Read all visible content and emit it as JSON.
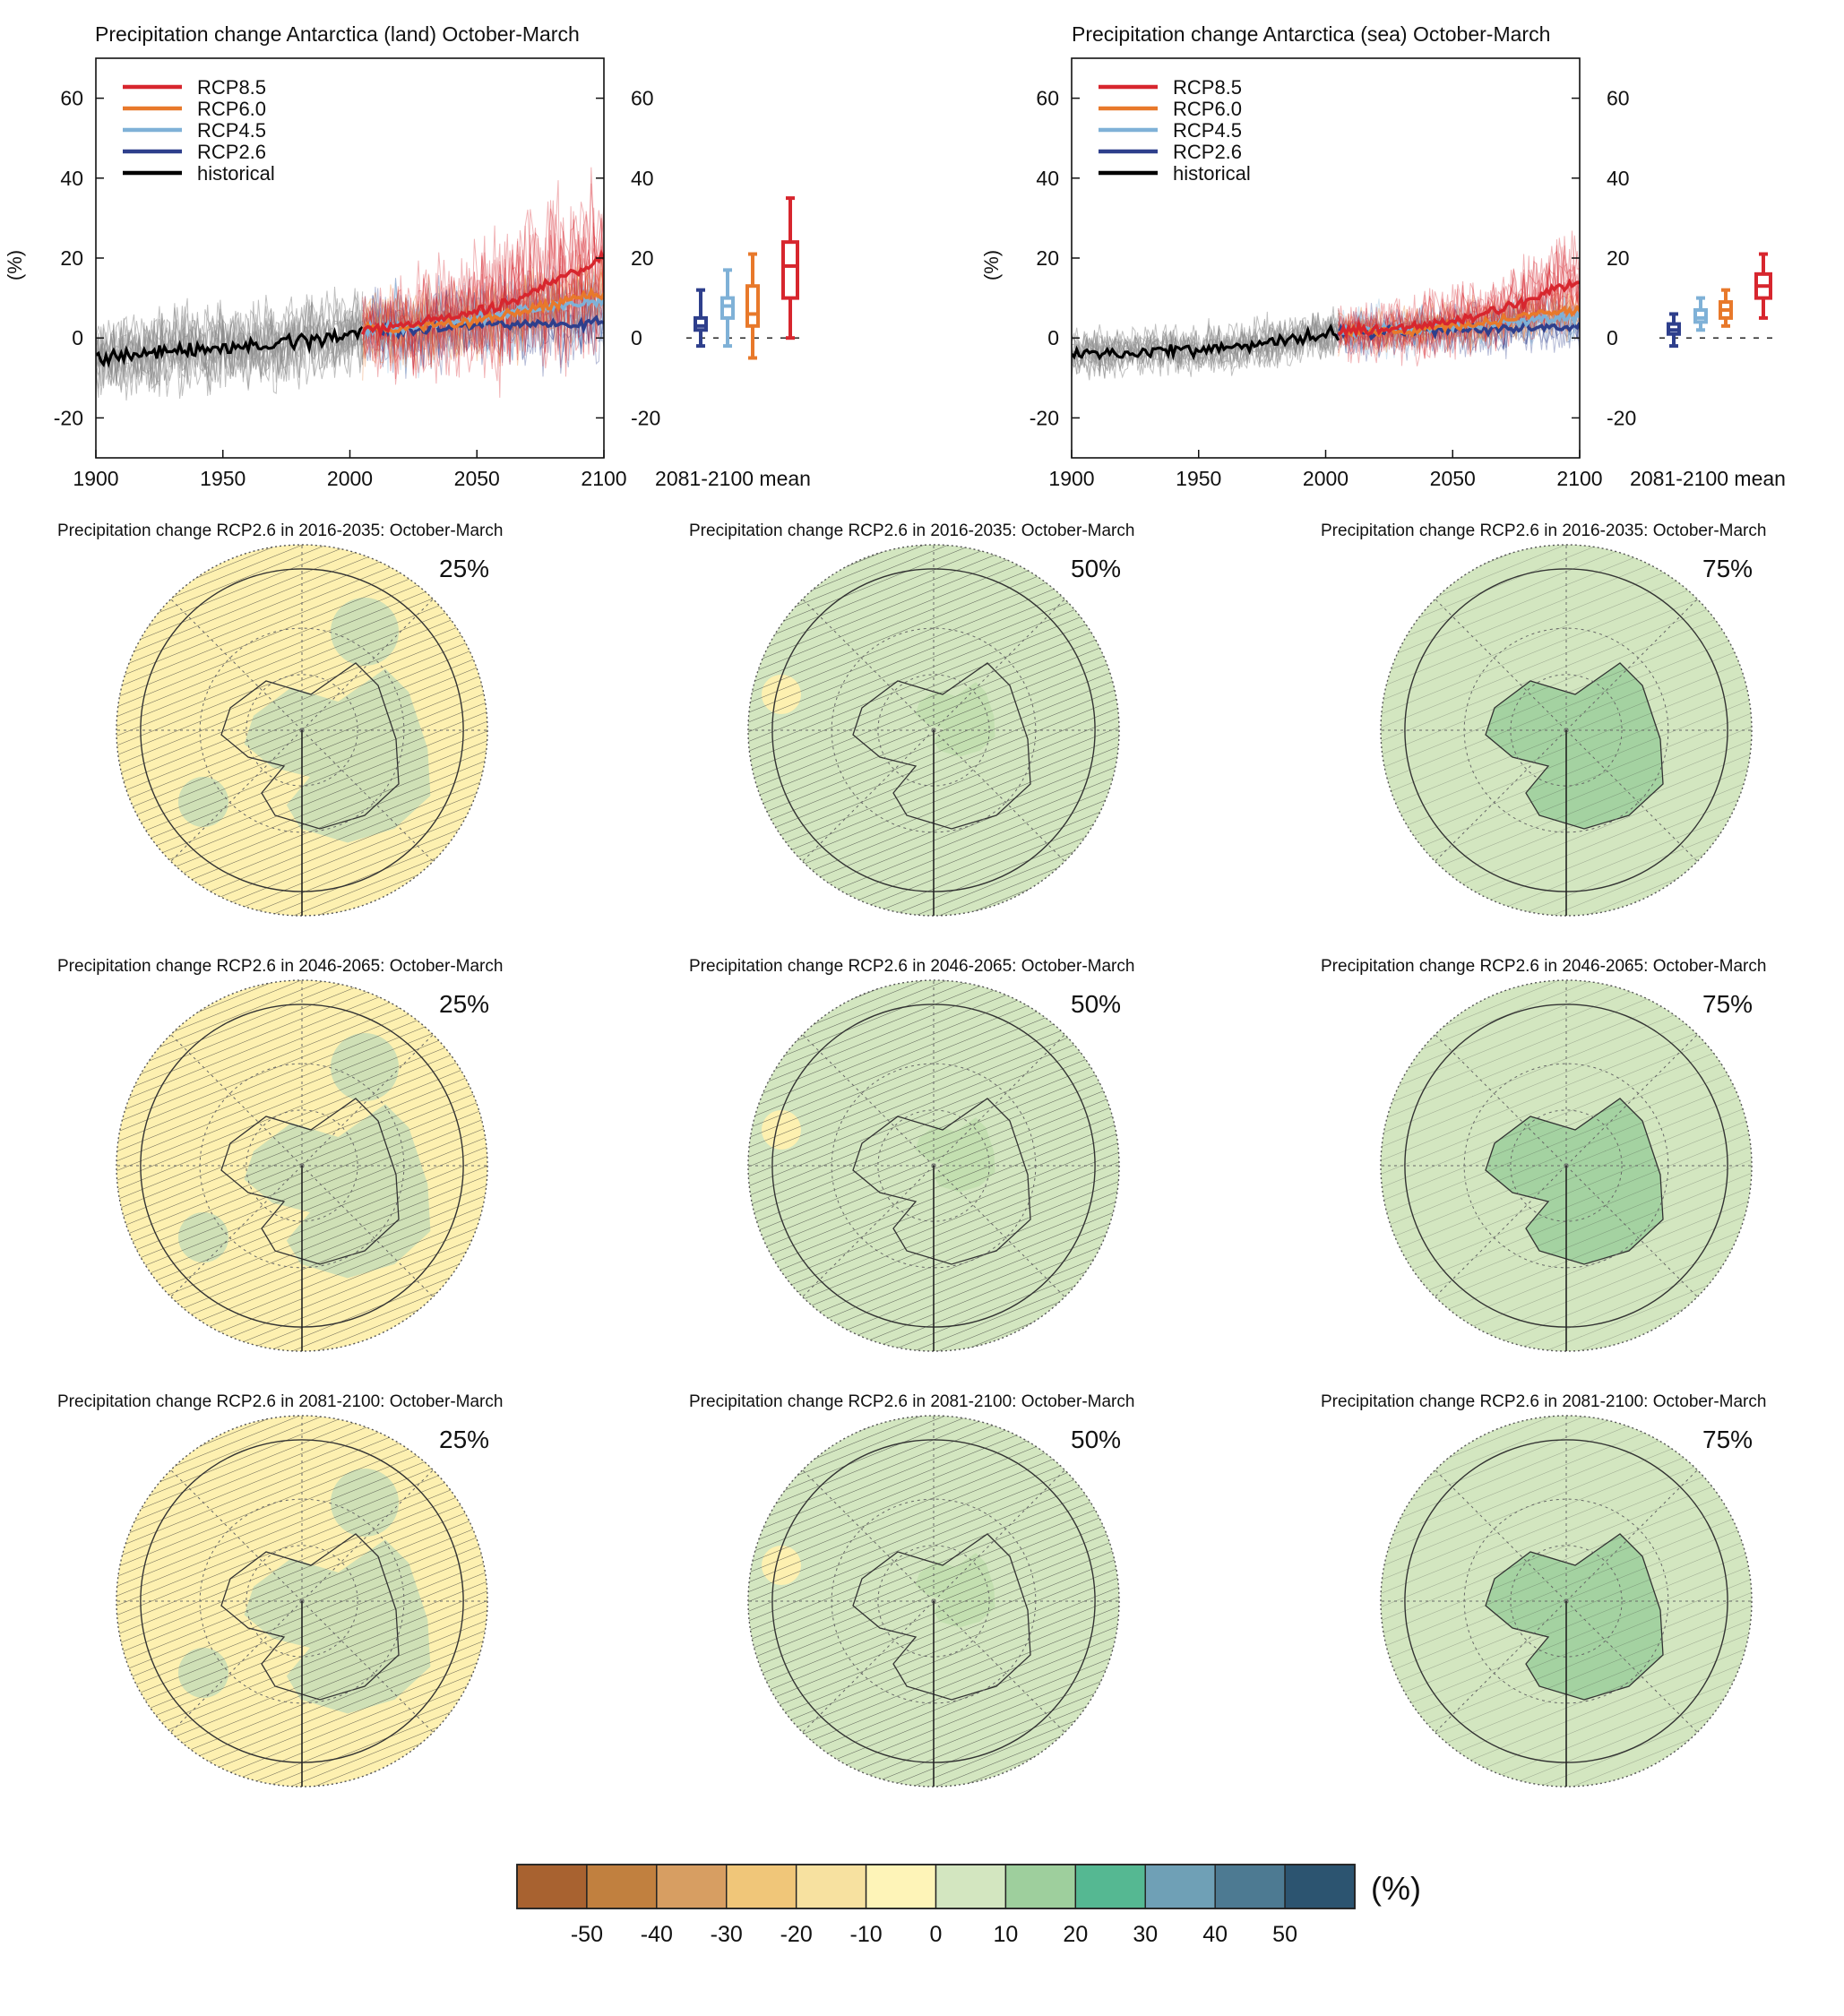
{
  "timeseries": [
    {
      "title": "Precipitation change Antarctica (land) October-March"
    },
    {
      "title": "Precipitation change Antarctica (sea) October-March"
    }
  ],
  "legend": [
    {
      "label": "RCP8.5",
      "color": "#d7262e"
    },
    {
      "label": "RCP6.0",
      "color": "#e8792b"
    },
    {
      "label": "RCP4.5",
      "color": "#7fb1d7"
    },
    {
      "label": "RCP2.6",
      "color": "#2e3f8c"
    },
    {
      "label": "historical",
      "color": "#000000"
    }
  ],
  "ylabel": "(%)",
  "box_axis_label": "2081-2100 mean",
  "maps": [
    {
      "title": "Precipitation change RCP2.6 in 2016-2035: October-March",
      "pct": "25%",
      "base": "#fdf0b0",
      "hatch": "dense"
    },
    {
      "title": "Precipitation change RCP2.6 in 2016-2035: October-March",
      "pct": "50%",
      "base": "#d3e6c0",
      "hatch": "dense"
    },
    {
      "title": "Precipitation change RCP2.6 in 2016-2035: October-March",
      "pct": "75%",
      "base": "#d3e6c0",
      "hatch": "sparse"
    },
    {
      "title": "Precipitation change RCP2.6 in 2046-2065: October-March",
      "pct": "25%",
      "base": "#fdf0b0",
      "hatch": "dense"
    },
    {
      "title": "Precipitation change RCP2.6 in 2046-2065: October-March",
      "pct": "50%",
      "base": "#d3e6c0",
      "hatch": "dense"
    },
    {
      "title": "Precipitation change RCP2.6 in 2046-2065: October-March",
      "pct": "75%",
      "base": "#d3e6c0",
      "hatch": "sparse"
    },
    {
      "title": "Precipitation change RCP2.6 in 2081-2100: October-March",
      "pct": "25%",
      "base": "#fdf0b0",
      "hatch": "dense"
    },
    {
      "title": "Precipitation change RCP2.6 in 2081-2100: October-March",
      "pct": "50%",
      "base": "#d3e6c0",
      "hatch": "dense"
    },
    {
      "title": "Precipitation change RCP2.6 in 2081-2100: October-March",
      "pct": "75%",
      "base": "#d3e6c0",
      "hatch": "sparse"
    }
  ],
  "colorbar": {
    "unit": "(%)",
    "colors": [
      "#a86230",
      "#c1803f",
      "#d79e62",
      "#f0c679",
      "#f7e1a0",
      "#fef4b8",
      "#d3e6c0",
      "#9ecf9d",
      "#55b892",
      "#6fa0b6",
      "#4d7a92",
      "#2c5470"
    ],
    "tick_labels": [
      "-50",
      "-40",
      "-30",
      "-20",
      "-10",
      "0",
      "10",
      "20",
      "30",
      "40",
      "50"
    ]
  },
  "chart_data": [
    {
      "type": "line",
      "title": "Precipitation change Antarctica (land) October-March",
      "xlabel": "",
      "ylabel": "(%)",
      "xlim": [
        1900,
        2100
      ],
      "ylim": [
        -30,
        70
      ],
      "xticks": [
        1900,
        1950,
        2000,
        2050,
        2100
      ],
      "yticks": [
        -20,
        0,
        20,
        40,
        60
      ],
      "legend_position": "top-left",
      "series": [
        {
          "name": "historical",
          "x": [
            1900,
            1910,
            1920,
            1930,
            1940,
            1950,
            1960,
            1970,
            1980,
            1990,
            2000,
            2005
          ],
          "values": [
            -5,
            -4.5,
            -4,
            -3.5,
            -3,
            -3,
            -2,
            -1.5,
            -0.5,
            0,
            1,
            2
          ]
        },
        {
          "name": "RCP2.6",
          "x": [
            2005,
            2020,
            2030,
            2040,
            2050,
            2060,
            2070,
            2080,
            2090,
            2100
          ],
          "values": [
            2,
            2,
            2.5,
            3,
            3,
            3.5,
            3.5,
            3.5,
            3.5,
            4
          ]
        },
        {
          "name": "RCP4.5",
          "x": [
            2005,
            2020,
            2030,
            2040,
            2050,
            2060,
            2070,
            2080,
            2090,
            2100
          ],
          "values": [
            2,
            2.5,
            3,
            4,
            5,
            6,
            7,
            8,
            8.5,
            9
          ]
        },
        {
          "name": "RCP6.0",
          "x": [
            2005,
            2020,
            2030,
            2040,
            2050,
            2060,
            2070,
            2080,
            2090,
            2100
          ],
          "values": [
            2,
            2.5,
            3,
            3.5,
            4.5,
            5.5,
            7,
            8.5,
            10,
            11
          ]
        },
        {
          "name": "RCP8.5",
          "x": [
            2005,
            2020,
            2030,
            2040,
            2050,
            2060,
            2070,
            2080,
            2090,
            2100
          ],
          "values": [
            2,
            3,
            4,
            5,
            6.5,
            8.5,
            11,
            14,
            17,
            20
          ]
        }
      ],
      "box_2081_2100": [
        {
          "name": "RCP2.6",
          "min": -2,
          "q1": 2,
          "median": 3,
          "q3": 5,
          "max": 12
        },
        {
          "name": "RCP4.5",
          "min": -2,
          "q1": 5,
          "median": 8,
          "q3": 10,
          "max": 17
        },
        {
          "name": "RCP6.0",
          "min": -5,
          "q1": 3,
          "median": 6,
          "q3": 13,
          "max": 21
        },
        {
          "name": "RCP8.5",
          "min": 0,
          "q1": 10,
          "median": 18,
          "q3": 24,
          "max": 35
        }
      ]
    },
    {
      "type": "line",
      "title": "Precipitation change Antarctica (sea) October-March",
      "xlabel": "",
      "ylabel": "(%)",
      "xlim": [
        1900,
        2100
      ],
      "ylim": [
        -30,
        70
      ],
      "xticks": [
        1900,
        1950,
        2000,
        2050,
        2100
      ],
      "yticks": [
        -20,
        0,
        20,
        40,
        60
      ],
      "legend_position": "top-left",
      "series": [
        {
          "name": "historical",
          "x": [
            1900,
            1910,
            1920,
            1930,
            1940,
            1950,
            1960,
            1970,
            1980,
            1990,
            2000,
            2005
          ],
          "values": [
            -4,
            -3.5,
            -3.5,
            -3,
            -3,
            -3,
            -2.5,
            -2,
            -1,
            0,
            1,
            1.5
          ]
        },
        {
          "name": "RCP2.6",
          "x": [
            2005,
            2020,
            2030,
            2040,
            2050,
            2060,
            2070,
            2080,
            2090,
            2100
          ],
          "values": [
            1.5,
            1.5,
            2,
            2,
            2,
            2,
            2,
            2.5,
            2.5,
            2.5
          ]
        },
        {
          "name": "RCP4.5",
          "x": [
            2005,
            2020,
            2030,
            2040,
            2050,
            2060,
            2070,
            2080,
            2090,
            2100
          ],
          "values": [
            1.5,
            2,
            2,
            2.5,
            3,
            3.5,
            4,
            4.5,
            5,
            5
          ]
        },
        {
          "name": "RCP6.0",
          "x": [
            2005,
            2020,
            2030,
            2040,
            2050,
            2060,
            2070,
            2080,
            2090,
            2100
          ],
          "values": [
            1.5,
            2,
            2,
            2.5,
            3,
            3.5,
            4.5,
            5.5,
            6.5,
            7.5
          ]
        },
        {
          "name": "RCP8.5",
          "x": [
            2005,
            2020,
            2030,
            2040,
            2050,
            2060,
            2070,
            2080,
            2090,
            2100
          ],
          "values": [
            1.5,
            2,
            2.5,
            3,
            4,
            5.5,
            7.5,
            9.5,
            12,
            14
          ]
        }
      ],
      "box_2081_2100": [
        {
          "name": "RCP2.6",
          "min": -2,
          "q1": 1,
          "median": 2,
          "q3": 3.5,
          "max": 6
        },
        {
          "name": "RCP4.5",
          "min": 2,
          "q1": 4,
          "median": 5,
          "q3": 7,
          "max": 10
        },
        {
          "name": "RCP6.0",
          "min": 3,
          "q1": 5,
          "median": 7,
          "q3": 9,
          "max": 12
        },
        {
          "name": "RCP8.5",
          "min": 5,
          "q1": 10,
          "median": 13,
          "q3": 16,
          "max": 21
        }
      ]
    }
  ]
}
